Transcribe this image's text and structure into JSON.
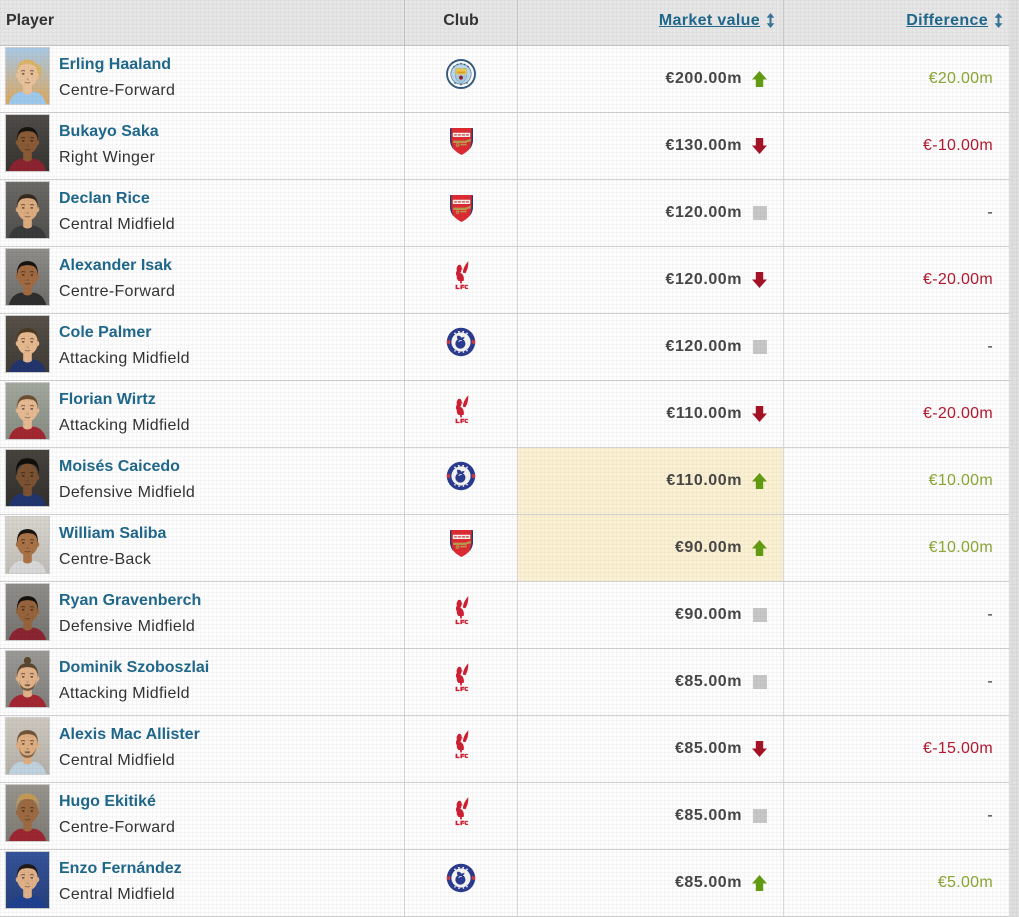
{
  "header": {
    "columns": [
      {
        "id": "player",
        "label": "Player",
        "sortable": false,
        "align": "left"
      },
      {
        "id": "club",
        "label": "Club",
        "sortable": false,
        "align": "center"
      },
      {
        "id": "market_value",
        "label": "Market value",
        "sortable": true,
        "align": "right"
      },
      {
        "id": "difference",
        "label": "Difference",
        "sortable": true,
        "align": "right"
      }
    ],
    "sort_icon": "up-down-arrow"
  },
  "players": [
    {
      "name": "Erling Haaland",
      "position": "Centre-Forward",
      "club": "Manchester City",
      "value": "€200.00m",
      "trend": "up",
      "difference": "€20.00m",
      "highlight": false,
      "avatar": {
        "bg": "#a9c9e6",
        "bg2": "#dba860",
        "skin": "#e9c29c",
        "hair": "#d8b469",
        "shirt": "#9ec9ec",
        "style": "ponytail"
      }
    },
    {
      "name": "Bukayo Saka",
      "position": "Right Winger",
      "club": "Arsenal",
      "value": "€130.00m",
      "trend": "down",
      "difference": "€-10.00m",
      "highlight": false,
      "avatar": {
        "bg": "#4e4b49",
        "bg2": "#36342f",
        "skin": "#8a5a36",
        "hair": "#16120e",
        "shirt": "#8c2330",
        "style": "short"
      }
    },
    {
      "name": "Declan Rice",
      "position": "Central Midfield",
      "club": "Arsenal",
      "value": "€120.00m",
      "trend": "none",
      "difference": "-",
      "highlight": false,
      "avatar": {
        "bg": "#6b6a66",
        "bg2": "#504f4c",
        "skin": "#dcab80",
        "hair": "#35291f",
        "shirt": "#3a3a3a",
        "style": "short"
      }
    },
    {
      "name": "Alexander Isak",
      "position": "Centre-Forward",
      "club": "Liverpool",
      "value": "€120.00m",
      "trend": "down",
      "difference": "€-20.00m",
      "highlight": false,
      "avatar": {
        "bg": "#8f8d8a",
        "bg2": "#6f6d6a",
        "skin": "#a06a42",
        "hair": "#17130f",
        "shirt": "#2e2e2e",
        "style": "short"
      }
    },
    {
      "name": "Cole Palmer",
      "position": "Attacking Midfield",
      "club": "Chelsea",
      "value": "€120.00m",
      "trend": "none",
      "difference": "-",
      "highlight": false,
      "avatar": {
        "bg": "#565049",
        "bg2": "#403b34",
        "skin": "#e6b88f",
        "hair": "#4c3823",
        "shirt": "#24356e",
        "style": "short"
      }
    },
    {
      "name": "Florian Wirtz",
      "position": "Attacking Midfield",
      "club": "Liverpool",
      "value": "€110.00m",
      "trend": "down",
      "difference": "€-20.00m",
      "highlight": false,
      "avatar": {
        "bg": "#a3a89e",
        "bg2": "#878c82",
        "skin": "#e5b992",
        "hair": "#6d4f31",
        "shirt": "#a12731",
        "style": "short"
      }
    },
    {
      "name": "Moisés Caicedo",
      "position": "Defensive Midfield",
      "club": "Chelsea",
      "value": "€110.00m",
      "trend": "up",
      "difference": "€10.00m",
      "highlight": true,
      "avatar": {
        "bg": "#46433f",
        "bg2": "#332f2c",
        "skin": "#7b5232",
        "hair": "#100d0a",
        "shirt": "#22346f",
        "style": "afro"
      }
    },
    {
      "name": "William Saliba",
      "position": "Centre-Back",
      "club": "Arsenal",
      "value": "€90.00m",
      "trend": "up",
      "difference": "€10.00m",
      "highlight": true,
      "avatar": {
        "bg": "#d8d5ce",
        "bg2": "#c0bdb6",
        "skin": "#a97347",
        "hair": "#19140f",
        "shirt": "#d8d8d8",
        "style": "short"
      }
    },
    {
      "name": "Ryan Gravenberch",
      "position": "Defensive Midfield",
      "club": "Liverpool",
      "value": "€90.00m",
      "trend": "none",
      "difference": "-",
      "highlight": false,
      "avatar": {
        "bg": "#908e8b",
        "bg2": "#757370",
        "skin": "#96633c",
        "hair": "#14100c",
        "shirt": "#8c2532",
        "style": "short"
      }
    },
    {
      "name": "Dominik Szoboszlai",
      "position": "Attacking Midfield",
      "club": "Liverpool",
      "value": "€85.00m",
      "trend": "none",
      "difference": "-",
      "highlight": false,
      "avatar": {
        "bg": "#9c9a96",
        "bg2": "#807e7a",
        "skin": "#e2b28a",
        "hair": "#5a452f",
        "shirt": "#a32732",
        "style": "bun",
        "beard": true
      }
    },
    {
      "name": "Alexis Mac Allister",
      "position": "Central Midfield",
      "club": "Liverpool",
      "value": "€85.00m",
      "trend": "down",
      "difference": "€-15.00m",
      "highlight": false,
      "avatar": {
        "bg": "#cdc8c0",
        "bg2": "#b5b0a8",
        "skin": "#deae83",
        "hair": "#6e5439",
        "shirt": "#bfd3de",
        "style": "short",
        "beard": true
      }
    },
    {
      "name": "Hugo Ekitiké",
      "position": "Centre-Forward",
      "club": "Liverpool",
      "value": "€85.00m",
      "trend": "none",
      "difference": "-",
      "highlight": false,
      "avatar": {
        "bg": "#98958f",
        "bg2": "#7d7a74",
        "skin": "#9c6a42",
        "hair": "#c59a55",
        "shirt": "#9c2732",
        "style": "braids"
      }
    },
    {
      "name": "Enzo Fernández",
      "position": "Central Midfield",
      "club": "Chelsea",
      "value": "€85.00m",
      "trend": "up",
      "difference": "€5.00m",
      "highlight": false,
      "avatar": {
        "bg": "#35539a",
        "bg2": "#27407c",
        "skin": "#e0b189",
        "hair": "#201a14",
        "shirt": "#1f3f8f",
        "style": "short"
      }
    }
  ],
  "colors": {
    "link_blue": "#20688c",
    "value_text": "#474747",
    "green_text": "#8aa633",
    "green_arrow": "#639c13",
    "red_text": "#b2182e",
    "red_arrow": "#a51226",
    "neutral_square": "#c7c7c7",
    "highlight_bg": "#fbf0d2",
    "sort_icon_blue": "#3a7599",
    "header_bg": "#e7e6e6",
    "page_bg": "#dfdfdf"
  }
}
